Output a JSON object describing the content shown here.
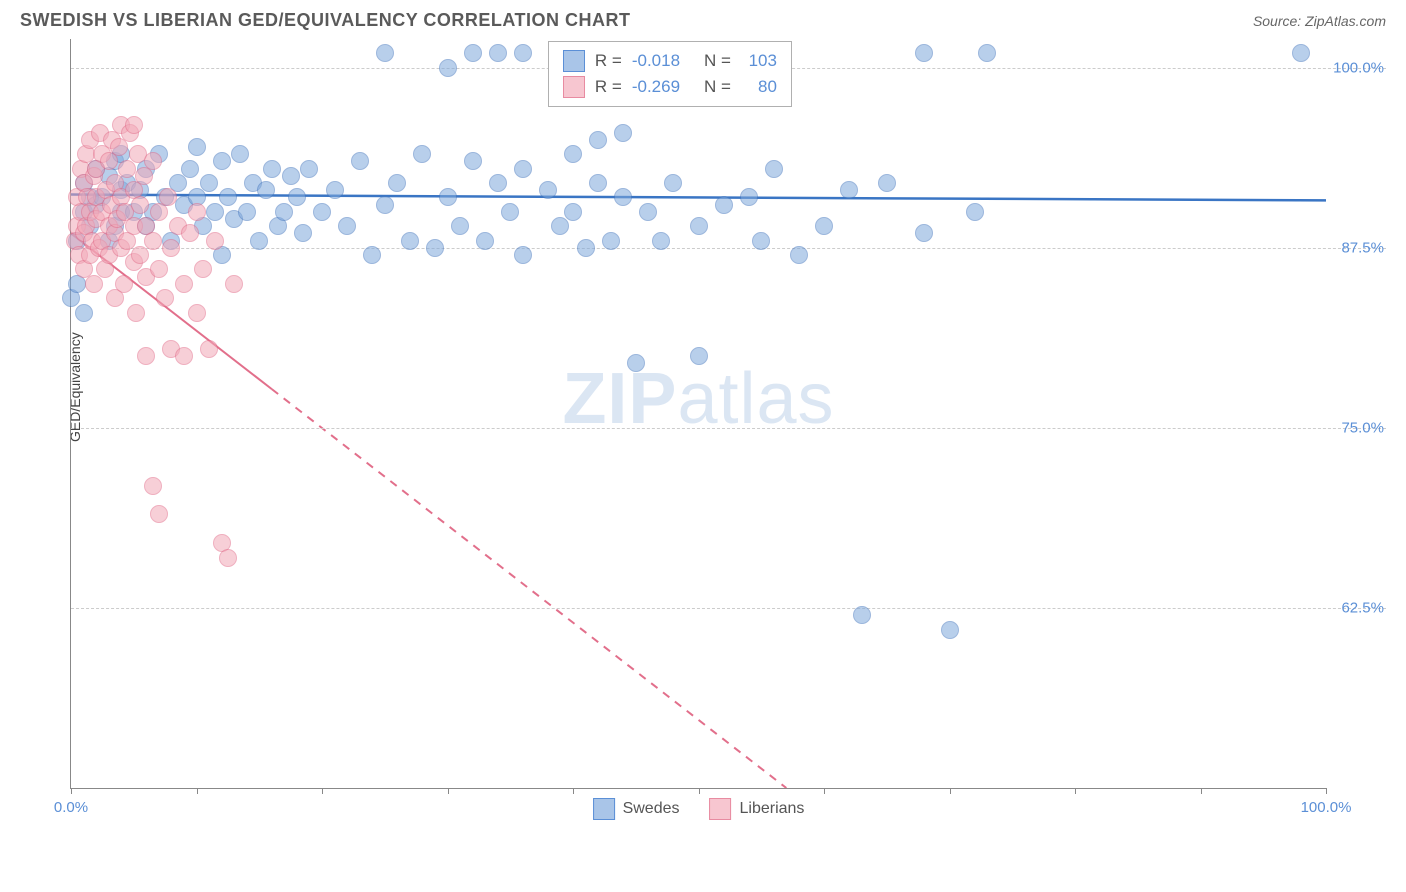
{
  "header": {
    "title": "SWEDISH VS LIBERIAN GED/EQUIVALENCY CORRELATION CHART",
    "source": "Source: ZipAtlas.com"
  },
  "watermark": {
    "zip": "ZIP",
    "atlas": "atlas"
  },
  "chart": {
    "type": "scatter",
    "ylabel": "GED/Equivalency",
    "xlim": [
      0,
      100
    ],
    "ylim": [
      50,
      102
    ],
    "y_ticks": [
      {
        "v": 62.5,
        "label": "62.5%"
      },
      {
        "v": 75.0,
        "label": "75.0%"
      },
      {
        "v": 87.5,
        "label": "87.5%"
      },
      {
        "v": 100.0,
        "label": "100.0%"
      }
    ],
    "x_ticks": [
      0,
      10,
      20,
      30,
      40,
      50,
      60,
      70,
      80,
      90,
      100
    ],
    "x_tick_labels": [
      {
        "v": 0,
        "label": "0.0%"
      },
      {
        "v": 100,
        "label": "100.0%"
      }
    ],
    "grid_color": "#cccccc",
    "background_color": "#ffffff",
    "marker_radius": 9,
    "marker_opacity": 0.55,
    "series": [
      {
        "name": "Swedes",
        "fill_color": "#7fa8db",
        "stroke_color": "#4a7bc0",
        "swatch_fill": "#a9c5e8",
        "swatch_border": "#5b8fd6",
        "trend": {
          "x1": 0,
          "y1": 91.2,
          "x2": 100,
          "y2": 90.8,
          "color": "#3a75c4",
          "width": 2.5,
          "dashed": false
        },
        "R": "-0.018",
        "N": "103",
        "points": [
          [
            0,
            84
          ],
          [
            0.5,
            85
          ],
          [
            0.5,
            88
          ],
          [
            1,
            90
          ],
          [
            1,
            92
          ],
          [
            1,
            83
          ],
          [
            1.5,
            91
          ],
          [
            1.5,
            89
          ],
          [
            2,
            90.5
          ],
          [
            2,
            93
          ],
          [
            2.5,
            91
          ],
          [
            3,
            92.5
          ],
          [
            3,
            88
          ],
          [
            3.5,
            89
          ],
          [
            3.5,
            93.5
          ],
          [
            4,
            90
          ],
          [
            4,
            91.5
          ],
          [
            4,
            94
          ],
          [
            4.5,
            92
          ],
          [
            5,
            90
          ],
          [
            5.5,
            91.5
          ],
          [
            6,
            93
          ],
          [
            6,
            89
          ],
          [
            6.5,
            90
          ],
          [
            7,
            94
          ],
          [
            7.5,
            91
          ],
          [
            8,
            88
          ],
          [
            8.5,
            92
          ],
          [
            9,
            90.5
          ],
          [
            9.5,
            93
          ],
          [
            10,
            91
          ],
          [
            10,
            94.5
          ],
          [
            10.5,
            89
          ],
          [
            11,
            92
          ],
          [
            11.5,
            90
          ],
          [
            12,
            93.5
          ],
          [
            12,
            87
          ],
          [
            12.5,
            91
          ],
          [
            13,
            89.5
          ],
          [
            13.5,
            94
          ],
          [
            14,
            90
          ],
          [
            14.5,
            92
          ],
          [
            15,
            88
          ],
          [
            15.5,
            91.5
          ],
          [
            16,
            93
          ],
          [
            16.5,
            89
          ],
          [
            17,
            90
          ],
          [
            17.5,
            92.5
          ],
          [
            18,
            91
          ],
          [
            18.5,
            88.5
          ],
          [
            19,
            93
          ],
          [
            20,
            90
          ],
          [
            21,
            91.5
          ],
          [
            22,
            89
          ],
          [
            23,
            93.5
          ],
          [
            24,
            87
          ],
          [
            25,
            90.5
          ],
          [
            25,
            101
          ],
          [
            26,
            92
          ],
          [
            27,
            88
          ],
          [
            28,
            94
          ],
          [
            29,
            87.5
          ],
          [
            30,
            91
          ],
          [
            30,
            100
          ],
          [
            31,
            89
          ],
          [
            32,
            93.5
          ],
          [
            32,
            101
          ],
          [
            33,
            88
          ],
          [
            34,
            92
          ],
          [
            34,
            101
          ],
          [
            35,
            90
          ],
          [
            36,
            87
          ],
          [
            36,
            93
          ],
          [
            36,
            101
          ],
          [
            38,
            91.5
          ],
          [
            39,
            89
          ],
          [
            40,
            94
          ],
          [
            40,
            90
          ],
          [
            41,
            87.5
          ],
          [
            42,
            92
          ],
          [
            42,
            95
          ],
          [
            43,
            88
          ],
          [
            44,
            91
          ],
          [
            44,
            95.5
          ],
          [
            45,
            79.5
          ],
          [
            46,
            90
          ],
          [
            47,
            88
          ],
          [
            48,
            92
          ],
          [
            50,
            80
          ],
          [
            50,
            89
          ],
          [
            52,
            90.5
          ],
          [
            54,
            91
          ],
          [
            55,
            88
          ],
          [
            56,
            93
          ],
          [
            58,
            87
          ],
          [
            60,
            89
          ],
          [
            62,
            91.5
          ],
          [
            63,
            62
          ],
          [
            65,
            92
          ],
          [
            68,
            88.5
          ],
          [
            68,
            101
          ],
          [
            70,
            61
          ],
          [
            72,
            90
          ],
          [
            73,
            101
          ],
          [
            98,
            101
          ]
        ]
      },
      {
        "name": "Liberians",
        "fill_color": "#f2a8b8",
        "stroke_color": "#e26f8b",
        "swatch_fill": "#f7c6d0",
        "swatch_border": "#e88ba1",
        "trend": {
          "x1": 0,
          "y1": 88.5,
          "x2": 57,
          "y2": 50,
          "color": "#e26f8b",
          "width": 2,
          "dashed": true,
          "solid_until_x": 16
        },
        "R": "-0.269",
        "N": "80",
        "points": [
          [
            0.3,
            88
          ],
          [
            0.5,
            89
          ],
          [
            0.5,
            91
          ],
          [
            0.6,
            87
          ],
          [
            0.8,
            90
          ],
          [
            0.8,
            93
          ],
          [
            1,
            88.5
          ],
          [
            1,
            92
          ],
          [
            1,
            86
          ],
          [
            1.2,
            94
          ],
          [
            1.2,
            89
          ],
          [
            1.3,
            91
          ],
          [
            1.5,
            87
          ],
          [
            1.5,
            95
          ],
          [
            1.5,
            90
          ],
          [
            1.7,
            88
          ],
          [
            1.8,
            92.5
          ],
          [
            1.8,
            85
          ],
          [
            2,
            89.5
          ],
          [
            2,
            93
          ],
          [
            2,
            91
          ],
          [
            2.2,
            87.5
          ],
          [
            2.3,
            95.5
          ],
          [
            2.5,
            90
          ],
          [
            2.5,
            88
          ],
          [
            2.5,
            94
          ],
          [
            2.7,
            86
          ],
          [
            2.8,
            91.5
          ],
          [
            3,
            89
          ],
          [
            3,
            93.5
          ],
          [
            3,
            87
          ],
          [
            3.2,
            90.5
          ],
          [
            3.3,
            95
          ],
          [
            3.5,
            88.5
          ],
          [
            3.5,
            92
          ],
          [
            3.5,
            84
          ],
          [
            3.7,
            89.5
          ],
          [
            3.8,
            94.5
          ],
          [
            4,
            87.5
          ],
          [
            4,
            91
          ],
          [
            4,
            96
          ],
          [
            4.2,
            85
          ],
          [
            4.3,
            90
          ],
          [
            4.5,
            93
          ],
          [
            4.5,
            88
          ],
          [
            4.7,
            95.5
          ],
          [
            5,
            86.5
          ],
          [
            5,
            91.5
          ],
          [
            5,
            89
          ],
          [
            5,
            96
          ],
          [
            5.2,
            83
          ],
          [
            5.3,
            94
          ],
          [
            5.5,
            87
          ],
          [
            5.5,
            90.5
          ],
          [
            5.8,
            92.5
          ],
          [
            6,
            85.5
          ],
          [
            6,
            89
          ],
          [
            6,
            80
          ],
          [
            6.5,
            88
          ],
          [
            6.5,
            93.5
          ],
          [
            6.5,
            71
          ],
          [
            7,
            86
          ],
          [
            7,
            90
          ],
          [
            7,
            69
          ],
          [
            7.5,
            84
          ],
          [
            7.7,
            91
          ],
          [
            8,
            80.5
          ],
          [
            8,
            87.5
          ],
          [
            8.5,
            89
          ],
          [
            9,
            85
          ],
          [
            9,
            80
          ],
          [
            9.5,
            88.5
          ],
          [
            10,
            83
          ],
          [
            10,
            90
          ],
          [
            10.5,
            86
          ],
          [
            11,
            80.5
          ],
          [
            11.5,
            88
          ],
          [
            12,
            67
          ],
          [
            12.5,
            66
          ],
          [
            13,
            85
          ]
        ]
      }
    ],
    "legend_top": {
      "rows": [
        {
          "series_idx": 0,
          "r_label": "R =",
          "n_label": "N ="
        },
        {
          "series_idx": 1,
          "r_label": "R =",
          "n_label": "N ="
        }
      ]
    },
    "legend_bottom": [
      {
        "series_idx": 0
      },
      {
        "series_idx": 1
      }
    ]
  }
}
